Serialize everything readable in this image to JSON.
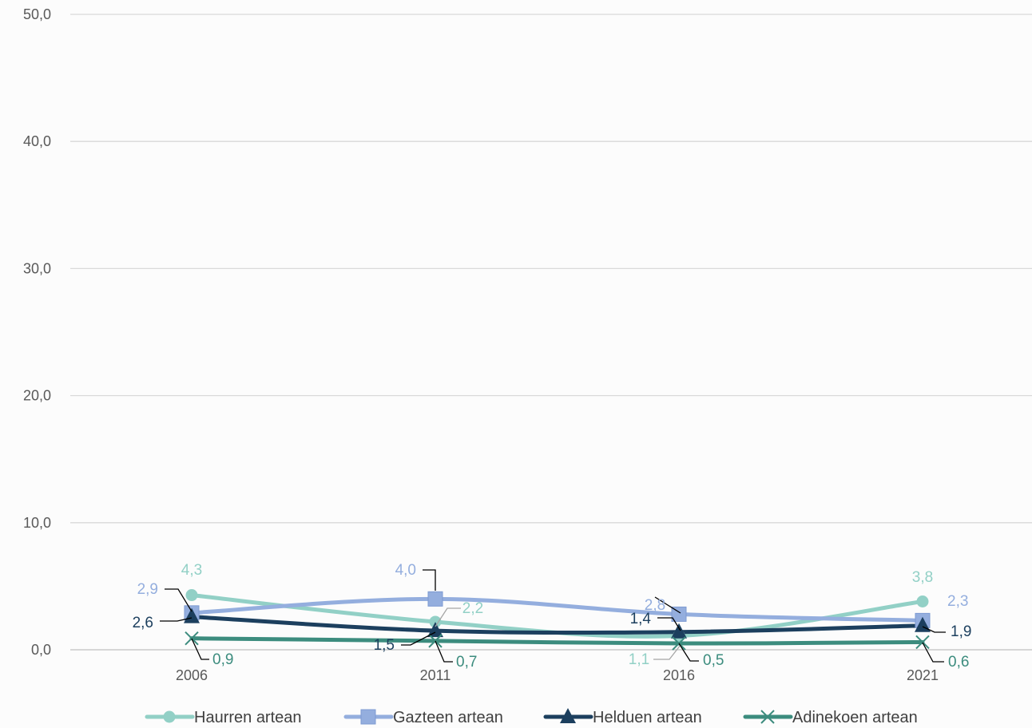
{
  "chart_data": {
    "type": "line",
    "categories": [
      "2006",
      "2011",
      "2016",
      "2021"
    ],
    "ylim": [
      0,
      50
    ],
    "yticks": [
      "0,0",
      "10,0",
      "20,0",
      "30,0",
      "40,0",
      "50,0"
    ],
    "grid": true,
    "legend_position": "bottom",
    "series": [
      {
        "name": "Haurren artean",
        "values": [
          4.3,
          2.2,
          1.1,
          3.8
        ],
        "labels": [
          "4,3",
          "2,2",
          "1,1",
          "3,8"
        ],
        "color": "#92d0c6",
        "marker": "circle"
      },
      {
        "name": "Gazteen artean",
        "values": [
          2.9,
          4.0,
          2.8,
          2.3
        ],
        "labels": [
          "2,9",
          "4,0",
          "2,8",
          "2,3"
        ],
        "color": "#94aede",
        "marker": "square"
      },
      {
        "name": "Helduen artean",
        "values": [
          2.6,
          1.5,
          1.4,
          1.9
        ],
        "labels": [
          "2,6",
          "1,5",
          "1,4",
          "1,9"
        ],
        "color": "#1c3f5e",
        "marker": "triangle"
      },
      {
        "name": "Adinekoen artean",
        "values": [
          0.9,
          0.7,
          0.5,
          0.6
        ],
        "labels": [
          "0,9",
          "0,7",
          "0,5",
          "0,6"
        ],
        "color": "#3c8c7e",
        "marker": "x"
      }
    ]
  }
}
